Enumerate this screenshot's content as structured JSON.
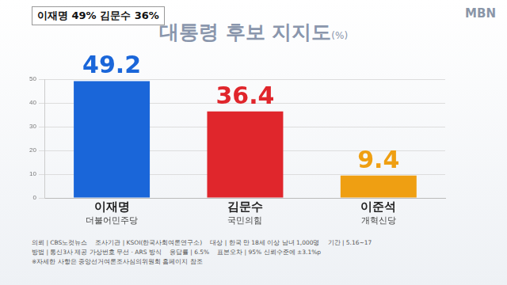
{
  "chart_data": {
    "type": "bar",
    "title": "대통령 후보 지지도",
    "subtitle": "(%)",
    "categories": [
      "이재명",
      "김문수",
      "이준석"
    ],
    "category_sublabels": [
      "더불어민주당",
      "국민의힘",
      "개혁신당"
    ],
    "values": [
      49.2,
      36.4,
      9.4
    ],
    "colors": [
      "#1a66d9",
      "#e0262c",
      "#ef9f12"
    ],
    "ylim": [
      0,
      50
    ],
    "yticks": [
      0,
      10,
      20,
      30,
      40,
      50
    ],
    "grid": true,
    "data_labels": true,
    "annotations": {
      "headline": "이재명 49% 김문수 36%",
      "logo": "MBN",
      "footer": [
        "의뢰 | CBS노컷뉴스",
        "조사기관 | KSOI(한국사회여론연구소)",
        "대상 | 한국 만 18세 이상 남녀 1,000명",
        "기간 | 5.16~17",
        "방법 | 통신3사 제공 가상번호 무선 · ARS 방식",
        "응답률 | 6.5%",
        "표본오차 | 95% 신뢰수준에 ±3.1%p",
        "※자세한 사항은 중앙선거여론조사심의위원회 홈페이지 참조"
      ]
    }
  }
}
